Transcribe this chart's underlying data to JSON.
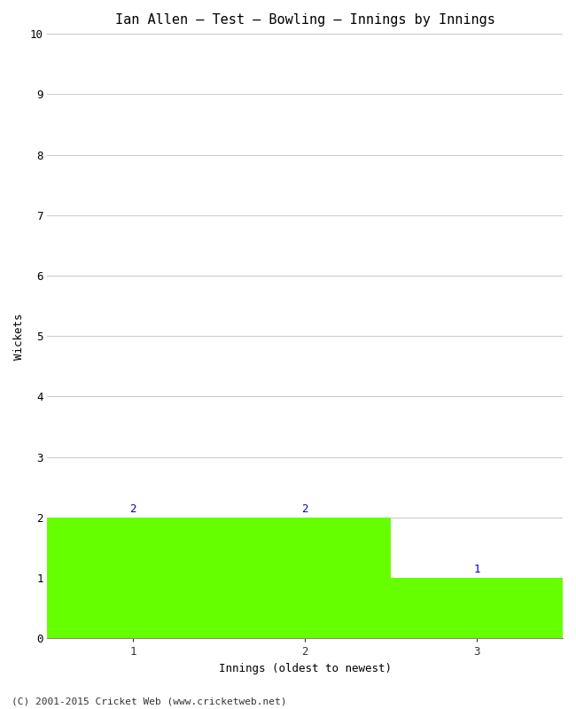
{
  "title": "Ian Allen – Test – Bowling – Innings by Innings",
  "xlabel": "Innings (oldest to newest)",
  "ylabel": "Wickets",
  "categories": [
    "1",
    "2",
    "3"
  ],
  "values": [
    2,
    2,
    1
  ],
  "bar_color": "#66ff00",
  "bar_edge_color": "#66ff00",
  "ylim": [
    0,
    10
  ],
  "yticks": [
    0,
    1,
    2,
    3,
    4,
    5,
    6,
    7,
    8,
    9,
    10
  ],
  "label_color": "#0000cc",
  "background_color": "#ffffff",
  "grid_color": "#cccccc",
  "footer": "(C) 2001-2015 Cricket Web (www.cricketweb.net)",
  "figwidth": 6.5,
  "figheight": 8.0,
  "dpi": 100
}
